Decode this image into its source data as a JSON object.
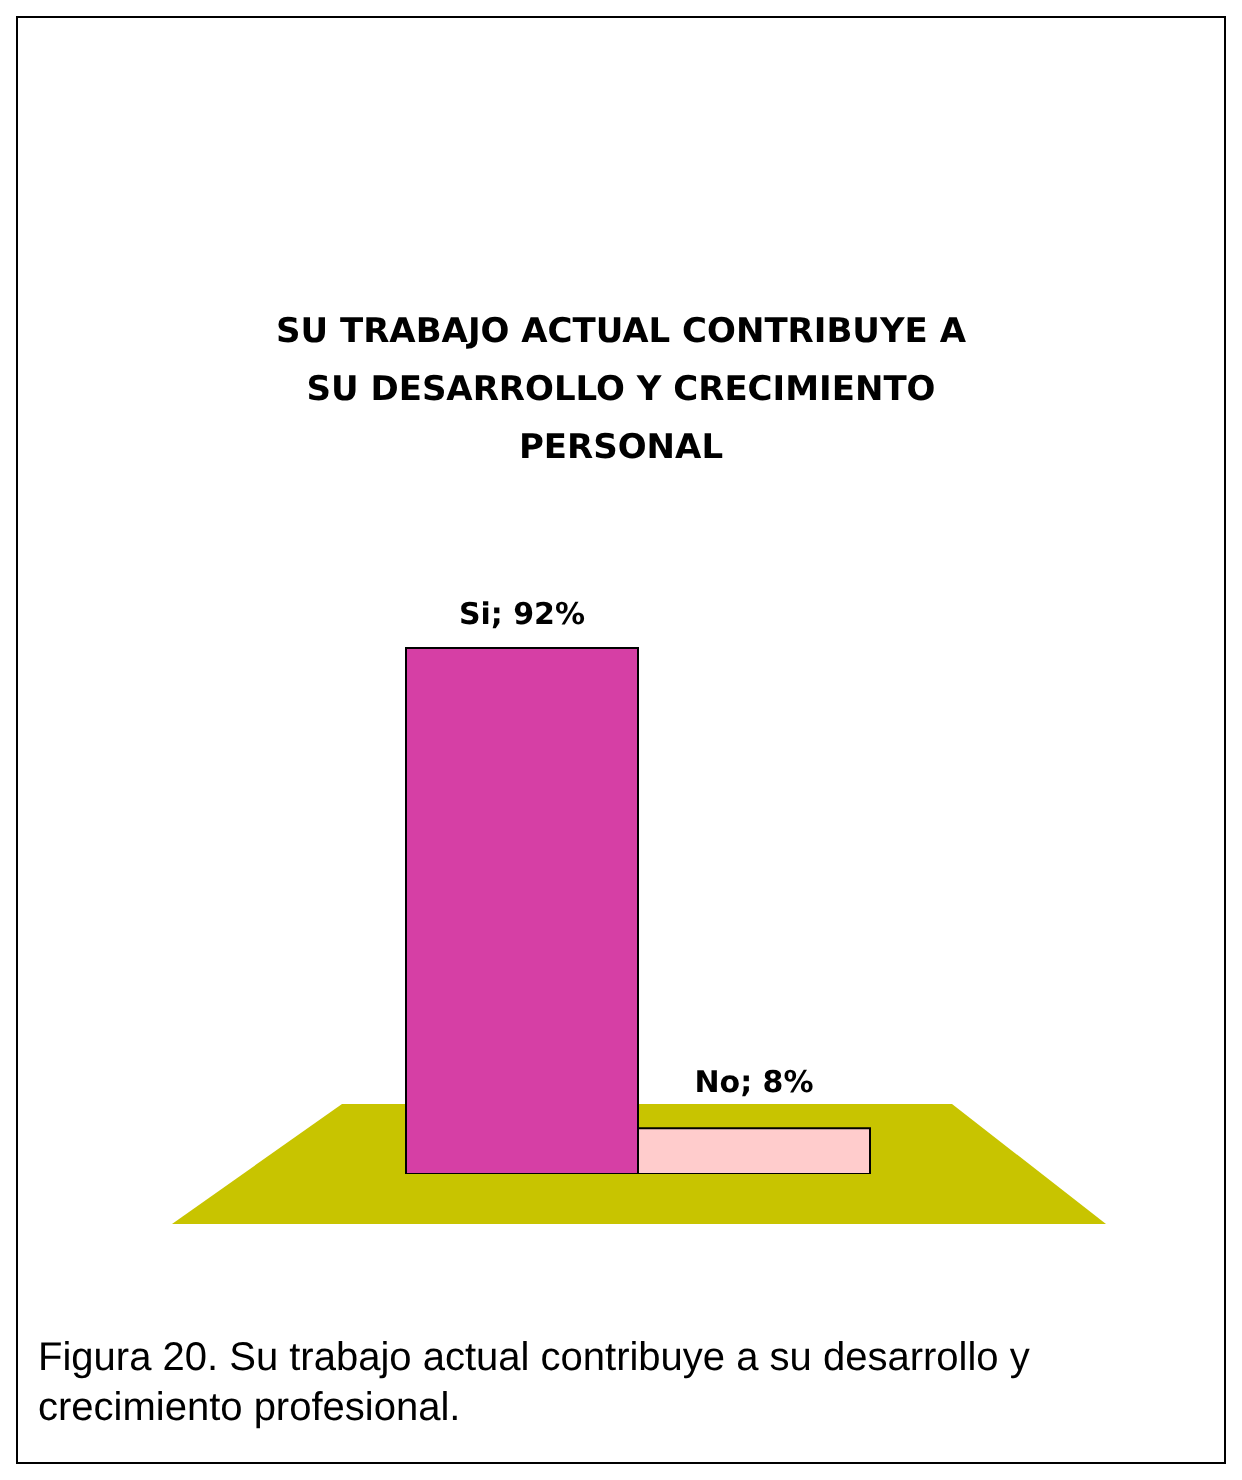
{
  "chart_data": {
    "type": "bar",
    "title": "SU TRABAJO ACTUAL CONTRIBUYE A SU DESARROLLO Y CRECIMIENTO PERSONAL",
    "categories": [
      null,
      null
    ],
    "values": [
      92,
      8
    ],
    "colors": [
      "#d63fa5",
      "#ffcccc"
    ],
    "value_labels": [
      "Si; 92%",
      "No; 8%"
    ],
    "relative": false,
    "tick_labels": false,
    "grid": false,
    "legend": false,
    "annotations": [
      "Figura 20. Su trabajo actual contribuye a su desarrollo y crecimiento profesional."
    ]
  }
}
